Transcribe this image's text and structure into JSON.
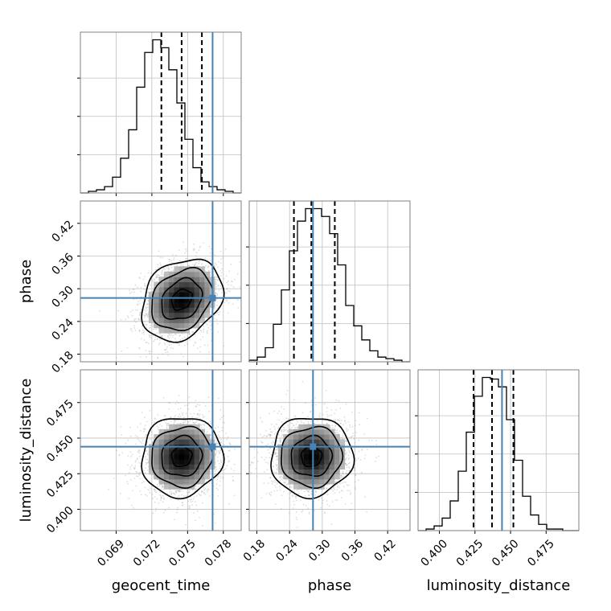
{
  "chart_data": {
    "type": "corner",
    "parameters": [
      {
        "key": "geocent_time",
        "label": "geocent_time",
        "range": [
          0.066,
          0.0795
        ],
        "ticks": [
          0.069,
          0.072,
          0.075,
          0.078
        ],
        "tick_labels": [
          "0.069",
          "0.072",
          "0.075",
          "0.078"
        ]
      },
      {
        "key": "phase",
        "label": "phase",
        "range": [
          0.166,
          0.461
        ],
        "ticks": [
          0.18,
          0.24,
          0.3,
          0.36,
          0.42
        ],
        "tick_labels": [
          "0.18",
          "0.24",
          "0.30",
          "0.36",
          "0.42"
        ]
      },
      {
        "key": "luminosity_distance",
        "label": "luminosity_distance",
        "range": [
          0.385,
          0.498
        ],
        "ticks": [
          0.4,
          0.425,
          0.45,
          0.475
        ],
        "tick_labels": [
          "0.400",
          "0.425",
          "0.450",
          "0.475"
        ]
      }
    ],
    "truths": {
      "geocent_time": 0.0771,
      "phase": 0.283,
      "luminosity_distance": 0.444
    },
    "quantiles": {
      "geocent_time": [
        0.0728,
        0.0745,
        0.0762
      ],
      "phase": [
        0.248,
        0.28,
        0.323
      ],
      "luminosity_distance": [
        0.424,
        0.437,
        0.452
      ]
    },
    "histograms": {
      "geocent_time": {
        "edges_range": [
          0.066,
          0.0795
        ],
        "bins": 20,
        "counts": [
          0,
          1,
          2,
          4,
          10,
          22,
          40,
          67,
          89,
          97,
          92,
          78,
          57,
          34,
          16,
          7,
          4,
          2,
          1,
          0
        ]
      },
      "phase": {
        "edges_range": [
          0.166,
          0.461
        ],
        "bins": 20,
        "counts": [
          1,
          3,
          9,
          24,
          46,
          71,
          90,
          98,
          98,
          93,
          82,
          62,
          36,
          23,
          14,
          7,
          3,
          2,
          1,
          0
        ]
      },
      "luminosity_distance": {
        "edges_range": [
          0.385,
          0.498
        ],
        "bins": 20,
        "counts": [
          0,
          1,
          3,
          8,
          19,
          38,
          63,
          86,
          98,
          97,
          92,
          71,
          45,
          22,
          10,
          4,
          1,
          1,
          0,
          0
        ]
      }
    },
    "correlations": {
      "phase|geocent_time": 0.25,
      "luminosity_distance|geocent_time": 0.05,
      "luminosity_distance|phase": 0.03
    },
    "grid": true,
    "truth_color": "#4682b4",
    "line_color": "#000000",
    "sample_color": "#9e9e9e"
  }
}
